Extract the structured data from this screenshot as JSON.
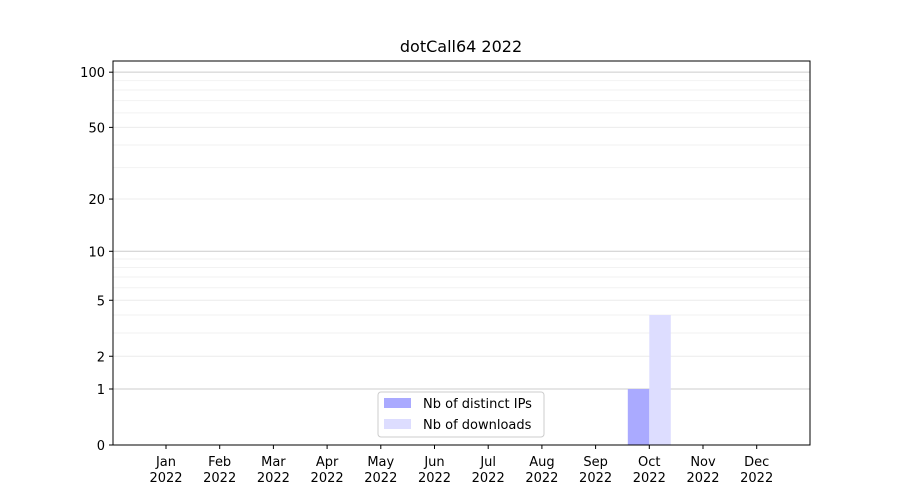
{
  "chart_data": {
    "type": "bar",
    "title": "dotCall64 2022",
    "xlabel": "",
    "ylabel": "",
    "yscale": "log(1+y)",
    "ylim": [
      0,
      115
    ],
    "yticks": [
      0,
      1,
      2,
      5,
      10,
      20,
      50,
      100
    ],
    "grid": true,
    "legend_position": "bottom-center",
    "categories": [
      "Jan\n2022",
      "Feb\n2022",
      "Mar\n2022",
      "Apr\n2022",
      "May\n2022",
      "Jun\n2022",
      "Jul\n2022",
      "Aug\n2022",
      "Sep\n2022",
      "Oct\n2022",
      "Nov\n2022",
      "Dec\n2022"
    ],
    "series": [
      {
        "name": "Nb of distinct IPs",
        "color": "#aaaaff",
        "values": [
          0,
          0,
          0,
          0,
          0,
          0,
          0,
          0,
          0,
          1,
          0,
          0
        ]
      },
      {
        "name": "Nb of downloads",
        "color": "#ddddff",
        "values": [
          0,
          0,
          0,
          0,
          0,
          0,
          0,
          0,
          0,
          4,
          0,
          0
        ]
      }
    ]
  }
}
